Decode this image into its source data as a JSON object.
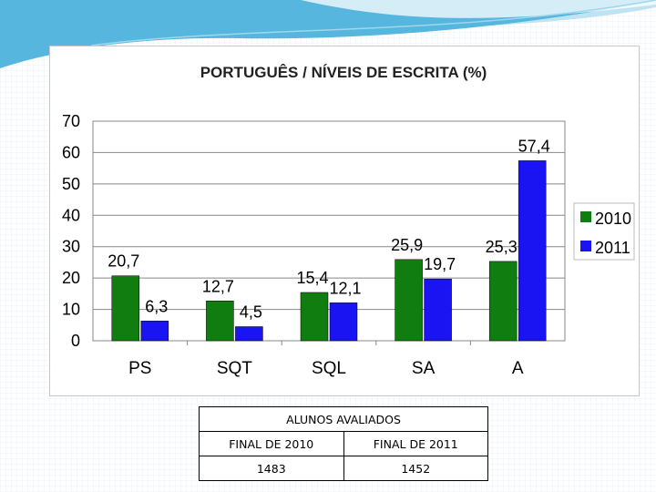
{
  "colors": {
    "series_2010": "#0f7d0f",
    "series_2011": "#1a14f2",
    "swoosh": "#4aa9d3"
  },
  "chart_data": {
    "type": "bar",
    "title": "PORTUGUÊS / NÍVEIS DE ESCRITA (%)",
    "categories": [
      "PS",
      "SQT",
      "SQL",
      "SA",
      "A"
    ],
    "series": [
      {
        "name": "2010",
        "values": [
          20.7,
          12.7,
          15.4,
          25.9,
          25.3
        ],
        "labels": [
          "20,7",
          "12,7",
          "15,4",
          "25,9",
          "25,3"
        ]
      },
      {
        "name": "2011",
        "values": [
          6.3,
          4.5,
          12.1,
          19.7,
          57.4
        ],
        "labels": [
          "6,3",
          "4,5",
          "12,1",
          "19,7",
          "57,4"
        ]
      }
    ],
    "ylim": [
      0,
      70
    ],
    "yticks": [
      0,
      10,
      20,
      30,
      40,
      50,
      60,
      70
    ],
    "grid": true,
    "legend": "right"
  },
  "table": {
    "header": "ALUNOS AVALIADOS",
    "columns": [
      "FINAL DE 2010",
      "FINAL DE 2011"
    ],
    "values": [
      "1483",
      "1452"
    ]
  }
}
